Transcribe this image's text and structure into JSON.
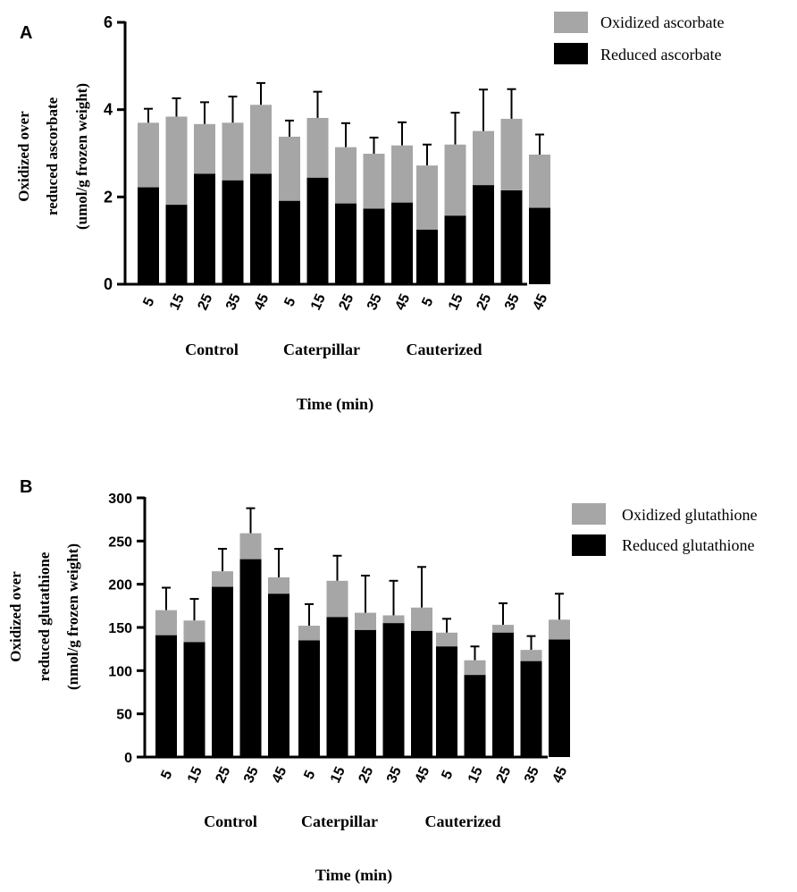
{
  "chart_data": [
    {
      "type": "bar",
      "stacked": true,
      "panel_label": "A",
      "ylabel_lines": [
        "Oxidized over",
        "reduced ascorbate",
        "(umol/g frozen weight)"
      ],
      "xlabel": "Time (min)",
      "ylim": [
        0,
        6
      ],
      "yticks": [
        "0",
        "2",
        "4",
        "6"
      ],
      "groups": [
        "Control",
        "Caterpillar",
        "Cauterized"
      ],
      "categories": [
        "5",
        "15",
        "25",
        "35",
        "45"
      ],
      "series": [
        {
          "name": "Reduced ascorbate",
          "color": "#000000",
          "values": [
            [
              2.22,
              1.82,
              2.53,
              2.38,
              2.53
            ],
            [
              1.91,
              2.44,
              1.85,
              1.73,
              1.87
            ],
            [
              1.25,
              1.57,
              2.27,
              2.15,
              1.75
            ]
          ]
        },
        {
          "name": "Oxidized ascorbate",
          "color": "#a6a6a6",
          "values": [
            [
              1.48,
              2.02,
              1.14,
              1.32,
              1.58
            ],
            [
              1.47,
              1.37,
              1.29,
              1.26,
              1.31
            ],
            [
              1.47,
              1.63,
              1.24,
              1.64,
              1.22
            ]
          ]
        }
      ],
      "error": [
        [
          0.32,
          0.42,
          0.5,
          0.6,
          0.5
        ],
        [
          0.37,
          0.6,
          0.55,
          0.37,
          0.53
        ],
        [
          0.48,
          0.73,
          0.95,
          0.68,
          0.46
        ]
      ]
    },
    {
      "type": "bar",
      "stacked": true,
      "panel_label": "B",
      "ylabel_lines": [
        "Oxidized over",
        "reduced glutathione",
        "(nmol/g frozen weight)"
      ],
      "xlabel": "Time (min)",
      "ylim": [
        0,
        300
      ],
      "yticks": [
        "0",
        "50",
        "100",
        "150",
        "200",
        "250",
        "300"
      ],
      "groups": [
        "Control",
        "Caterpillar",
        "Cauterized"
      ],
      "categories": [
        "5",
        "15",
        "25",
        "35",
        "45"
      ],
      "series": [
        {
          "name": "Reduced glutathione",
          "color": "#000000",
          "values": [
            [
              141,
              133,
              197,
              229,
              189
            ],
            [
              135,
              162,
              147,
              155,
              146
            ],
            [
              128,
              95,
              144,
              111,
              136
            ]
          ]
        },
        {
          "name": "Oxidized glutathione",
          "color": "#a6a6a6",
          "values": [
            [
              29,
              25,
              18,
              30,
              19
            ],
            [
              17,
              42,
              20,
              9,
              27
            ],
            [
              16,
              17,
              9,
              13,
              23
            ]
          ]
        }
      ],
      "error": [
        [
          26,
          25,
          26,
          29,
          33
        ],
        [
          25,
          29,
          43,
          40,
          47
        ],
        [
          16,
          16,
          25,
          16,
          30
        ]
      ]
    }
  ]
}
